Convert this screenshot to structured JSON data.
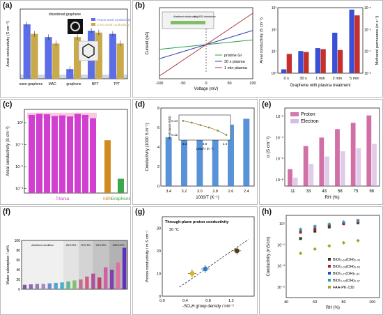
{
  "panels": {
    "a": {
      "label": "(a)",
      "chart_data": {
        "type": "bar",
        "ylabel": "Areal conductivity (S cm⁻²)",
        "categories": [
          "nano-graphene",
          "MAC",
          "graphene",
          "BPT",
          "TPT"
        ],
        "legend_top": "disordered graphene",
        "series": [
          {
            "name": "Proton areal conductivity",
            "values": [
              0.85,
              0.65,
              0.15,
              0.75,
              0.7
            ],
            "color": "#5b6ee8"
          },
          {
            "name": "Li-ion areal conductivity",
            "values": [
              0.7,
              0.55,
              0.65,
              0.72,
              0.55
            ],
            "color": "#c9a94a"
          }
        ],
        "ylim": [
          0,
          1
        ]
      }
    },
    "b": {
      "label": "(b)",
      "left_chart": {
        "type": "line",
        "xlabel": "Voltage (mV)",
        "ylabel": "Current (nA)",
        "x_ticks": [
          "-100",
          "-50",
          "0",
          "50",
          "100"
        ],
        "inset_left": "Ambient electrode",
        "inset_right": "AgNO3 electrode",
        "series": [
          {
            "name": "pristine Gr",
            "slope": 0.15,
            "color": "#2a9d3e"
          },
          {
            "name": "30 s plasma",
            "slope": 0.45,
            "color": "#2b3fb3"
          },
          {
            "name": "1 min plasma",
            "slope": 1.0,
            "color": "#b0303a"
          }
        ]
      },
      "right_chart": {
        "type": "bar",
        "xlabel": "Graphene with plasma treatment",
        "ylabel_left": "Areal conductivity (S cm⁻²)",
        "ylabel_right": "Methanol permeance (m s⁻¹)",
        "categories": [
          "0 s",
          "30 s",
          "1 min",
          "2 min",
          "5 min"
        ],
        "y_ticks_left": [
          "10⁰",
          "10¹",
          "10²",
          "10³"
        ],
        "y_ticks_right": [
          "10⁻⁸",
          "10⁻⁷",
          "10⁻⁶",
          "10⁻⁵"
        ],
        "series": [
          {
            "name": "Areal conductivity",
            "log_values": [
              0.2,
              1.15,
              1.3,
              2.1,
              3.3
            ],
            "color": "#3a4fd6"
          },
          {
            "name": "Methanol permeance",
            "log_values": [
              1.0,
              1.1,
              1.25,
              1.2,
              3.0
            ],
            "color": "#c4302b"
          }
        ]
      }
    },
    "c": {
      "label": "(c)",
      "chart_data": {
        "type": "bar",
        "ylabel": "Areal conductivity (S cm⁻²)",
        "y_ticks": [
          "10⁻³",
          "10⁻²",
          "10⁻¹",
          "10⁰"
        ],
        "groups": [
          {
            "name": "Titania",
            "color": "#d13fd1",
            "log_values": [
              0.35,
              0.4,
              0.38,
              0.3,
              0.33,
              0.28,
              0.4,
              0.35,
              0.2
            ]
          },
          {
            "name": "hBN",
            "color": "#d08a1e",
            "log_values": [
              -0.8
            ]
          },
          {
            "name": "Graphene",
            "color": "#3aa84a",
            "log_values": [
              -2.55
            ]
          }
        ]
      }
    },
    "d": {
      "label": "(d)",
      "chart_data": {
        "type": "bar",
        "xlabel": "1000/T (K⁻¹)",
        "ylabel": "Conductivity (1000 S m⁻¹)",
        "x": [
          3.4,
          3.2,
          3.0,
          2.8,
          2.6,
          2.4
        ],
        "x_ticks": [
          "3.4",
          "3.2",
          "3.0",
          "2.8",
          "2.6",
          "2.4"
        ],
        "y_ticks": [
          "0",
          "2",
          "4",
          "6",
          "8"
        ],
        "values": [
          5.0,
          5.3,
          5.7,
          5.9,
          6.3,
          6.9
        ],
        "ylim": [
          0,
          8
        ],
        "inset": {
          "xlabel": "1000/T (K⁻¹)",
          "ylabel": "Resistance (MΩ)",
          "x_ticks": [
            "3.2",
            "2.8",
            "2.4"
          ],
          "y_ticks": [
            "0.12",
            "0.14"
          ],
          "points": [
            0.145,
            0.142,
            0.138,
            0.134,
            0.129,
            0.122
          ]
        }
      }
    },
    "e": {
      "label": "(e)",
      "chart_data": {
        "type": "bar",
        "xlabel": "RH (%)",
        "ylabel": "σ (S cm⁻¹)",
        "categories": [
          "11",
          "33",
          "43",
          "58",
          "75",
          "98"
        ],
        "y_ticks": [
          "10⁻⁸",
          "10⁻⁶",
          "10⁻⁴",
          "10⁻²"
        ],
        "series": [
          {
            "name": "Proton",
            "log_values": [
              -7.0,
              -4.8,
              -4.0,
              -3.2,
              -2.6,
              -1.9
            ],
            "color": "#c0408a"
          },
          {
            "name": "Electron",
            "log_values": [
              -7.8,
              -6.5,
              -5.8,
              -5.3,
              -5.0,
              -4.6
            ],
            "color": "#c7a0d8"
          }
        ],
        "ylim_log": [
          -8.6,
          -1.2
        ]
      }
    },
    "f": {
      "label": "(f)",
      "chart_data": {
        "type": "bar",
        "ylabel": "Water adsorption / wt%",
        "y_ticks": [
          "0",
          "20",
          "40",
          "60",
          "80",
          "100"
        ],
        "regions": [
          "Ambient condition",
          "30% RH",
          "70% RH",
          "90% RH",
          "100% RH"
        ],
        "values": [
          9,
          10,
          11,
          11,
          12,
          13,
          14,
          16,
          18,
          20,
          26,
          32,
          24,
          45,
          40,
          55,
          85
        ],
        "ylim": [
          0,
          100
        ]
      }
    },
    "g": {
      "label": "(g)",
      "chart_data": {
        "type": "scatter",
        "title": "Through-plane proton conductivity",
        "annotation": "30 °C",
        "xlabel": "-SO₃H group density / nm⁻²",
        "ylabel": "Proton conductivity / m S cm⁻¹",
        "x_ticks": [
          "0.0",
          "0.4",
          "0.8",
          "1.2"
        ],
        "y_ticks": [
          "0",
          "10",
          "20",
          "30"
        ],
        "xlim": [
          0,
          1.6
        ],
        "ylim": [
          0,
          35
        ],
        "points": [
          {
            "x": 0.52,
            "y": 10,
            "color": "#e0b020"
          },
          {
            "x": 0.75,
            "y": 12,
            "color": "#2a7fd0"
          },
          {
            "x": 1.3,
            "y": 20,
            "color": "#5a3a1a"
          }
        ]
      }
    },
    "h": {
      "label": "(h)",
      "chart_data": {
        "type": "scatter",
        "xlabel": "RH (%)",
        "ylabel": "Conductivity (mS/cm)",
        "x_ticks": [
          "40",
          "60",
          "80",
          "100"
        ],
        "y_ticks": [
          "10⁻⁵",
          "10⁻³",
          "10⁻¹",
          "10¹"
        ],
        "xlim": [
          40,
          105
        ],
        "ylim_log": [
          -6,
          1.8
        ],
        "series": [
          {
            "name": "BiOI₀.₆₄(OH)₀.₃₆",
            "color": "#333",
            "log_values": [
              -0.4,
              0.3,
              0.7,
              1.0,
              1.1
            ]
          },
          {
            "name": "BiOI₀.₃₅(OH)₀.₆₅",
            "color": "#b02020",
            "log_values": [
              0.2,
              0.5,
              0.8,
              1.0,
              1.2
            ]
          },
          {
            "name": "BiOI₀.₁₇(OH)₀.₈₃",
            "color": "#1a4fb5",
            "log_values": [
              0.4,
              0.7,
              0.9,
              1.1,
              1.3
            ]
          },
          {
            "name": "BiOI₀.₀₃(OH)₀.₉₇",
            "color": "#28a0b0",
            "log_values": [
              0.5,
              0.8,
              1.0,
              1.2,
              1.3
            ]
          },
          {
            "name": "FAA-PK-130",
            "color": "#a8a020",
            "log_values": [
              -1.8,
              -1.4,
              -1.1,
              -0.8,
              -0.6
            ]
          }
        ],
        "x": [
          50,
          60,
          70,
          80,
          90
        ]
      }
    }
  }
}
